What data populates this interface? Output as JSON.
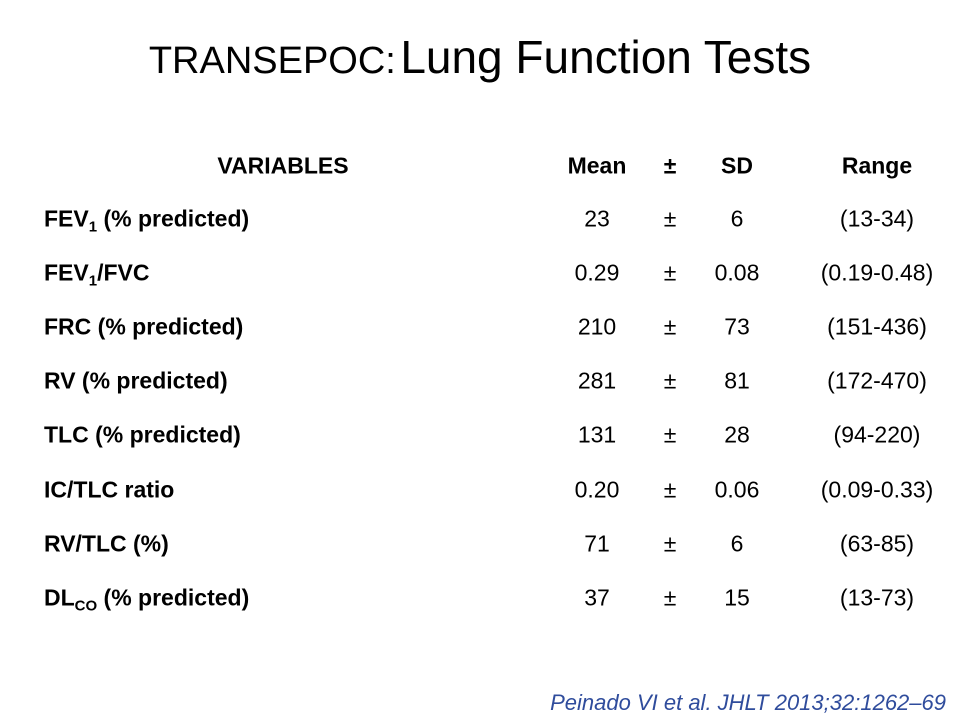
{
  "header": {
    "title_prefix": "TRANSEPOC:",
    "title_main": "Lung Function Tests"
  },
  "table": {
    "columns": [
      "VARIABLES",
      "Mean",
      "±",
      "SD",
      "Range"
    ],
    "rows": [
      {
        "variable": {
          "label": "FEV",
          "sub": "1",
          "suffix": " (% predicted)"
        },
        "mean": "23",
        "pm": "±",
        "sd": "6",
        "range": "(13-34)"
      },
      {
        "variable": {
          "label": "FEV",
          "sub": "1",
          "suffix": "/FVC"
        },
        "mean": "0.29",
        "pm": "±",
        "sd": "0.08",
        "range": "(0.19-0.48)"
      },
      {
        "variable": {
          "label": "FRC (% predicted)"
        },
        "mean": "210",
        "pm": "±",
        "sd": "73",
        "range": "(151-436)"
      },
      {
        "variable": {
          "label": "RV (% predicted)"
        },
        "mean": "281",
        "pm": "±",
        "sd": "81",
        "range": "(172-470)"
      },
      {
        "variable": {
          "label": "TLC (% predicted)"
        },
        "mean": "131",
        "pm": "±",
        "sd": "28",
        "range": "(94-220)"
      },
      {
        "variable": {
          "label": "IC/TLC ratio"
        },
        "mean": "0.20",
        "pm": "±",
        "sd": "0.06",
        "range": "(0.09-0.33)"
      },
      {
        "variable": {
          "label": "RV/TLC (%)"
        },
        "mean": "71",
        "pm": "±",
        "sd": "6",
        "range": "(63-85)"
      },
      {
        "variable": {
          "label": "DL",
          "sub": "CO",
          "suffix": " (% predicted)"
        },
        "mean": "37",
        "pm": "±",
        "sd": "15",
        "range": "(13-73)"
      }
    ]
  },
  "footer": {
    "citation": "Peinado VI et al. JHLT 2013;32:1262–69"
  }
}
